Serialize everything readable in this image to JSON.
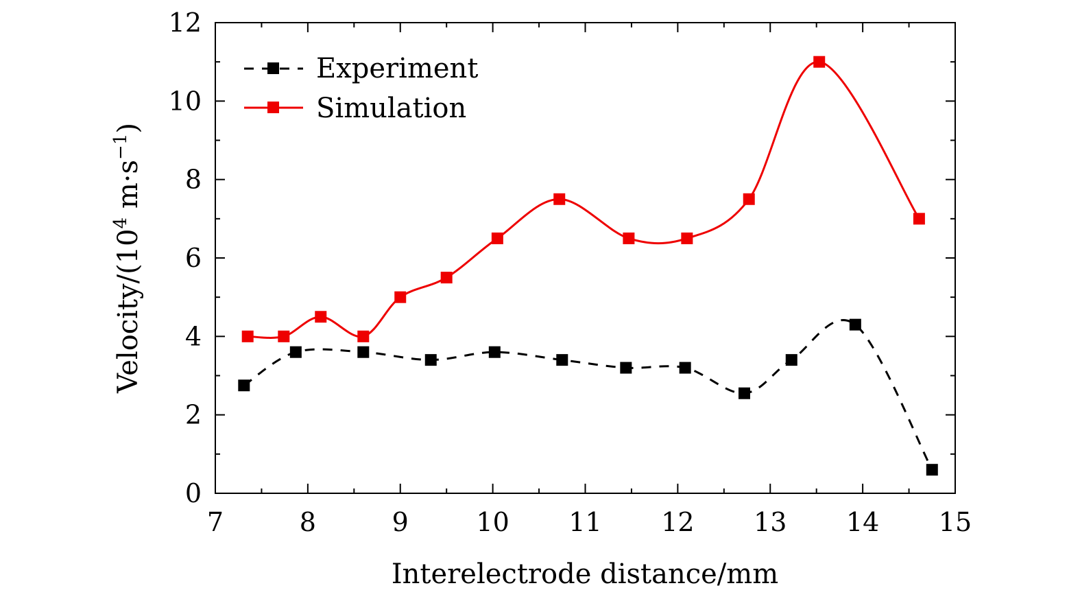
{
  "chart_data": {
    "type": "line",
    "title": "",
    "xlabel": "Interelectrode distance/mm",
    "ylabel_prefix": "Velocity/(10",
    "ylabel_exp": "4",
    "ylabel_mid": " m·s",
    "ylabel_exp2": "−1",
    "ylabel_suffix": ")",
    "xlim": [
      7,
      15
    ],
    "ylim": [
      0,
      12
    ],
    "xticks": [
      7,
      8,
      9,
      10,
      11,
      12,
      13,
      14,
      15
    ],
    "yticks": [
      0,
      2,
      4,
      6,
      8,
      10,
      12
    ],
    "grid": false,
    "legend_position": "top-left",
    "series": [
      {
        "name": "Experiment",
        "color": "#000000",
        "line_style": "dashed",
        "marker": "square",
        "x": [
          7.31,
          7.87,
          8.6,
          9.33,
          10.02,
          10.75,
          11.44,
          12.08,
          12.72,
          13.23,
          13.92,
          14.75
        ],
        "y": [
          2.75,
          3.6,
          3.6,
          3.4,
          3.6,
          3.4,
          3.2,
          3.2,
          2.55,
          3.4,
          4.3,
          0.6
        ]
      },
      {
        "name": "Simulation",
        "color": "#ee0000",
        "line_style": "solid",
        "marker": "square",
        "x": [
          7.35,
          7.74,
          8.14,
          8.6,
          9.0,
          9.5,
          10.05,
          10.72,
          11.47,
          12.1,
          12.77,
          13.53,
          14.61
        ],
        "y": [
          4.0,
          4.0,
          4.5,
          4.0,
          5.0,
          5.5,
          6.5,
          7.5,
          6.5,
          6.5,
          7.5,
          11.0,
          7.0
        ]
      }
    ]
  }
}
